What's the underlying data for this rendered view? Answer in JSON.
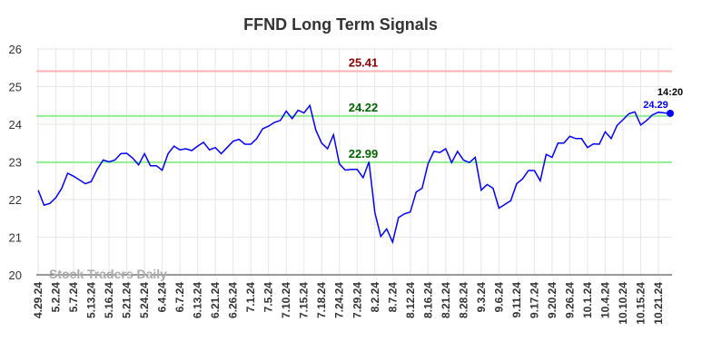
{
  "chart_data": {
    "type": "line",
    "title": "FFND Long Term Signals",
    "watermark": "Stock Traders Daily",
    "categories": [
      "4.29.24",
      null,
      null,
      "5.2.24",
      null,
      null,
      "5.7.24",
      null,
      null,
      "5.13.24",
      null,
      null,
      "5.16.24",
      null,
      null,
      "5.21.24",
      null,
      null,
      "5.24.24",
      null,
      null,
      "6.4.24",
      null,
      null,
      "6.7.24",
      null,
      null,
      "6.13.24",
      null,
      null,
      "6.21.24",
      null,
      null,
      "6.26.24",
      null,
      null,
      "7.1.24",
      null,
      null,
      "7.5.24",
      null,
      null,
      "7.10.24",
      null,
      null,
      "7.15.24",
      null,
      null,
      "7.18.24",
      null,
      null,
      "7.24.24",
      null,
      null,
      "7.29.24",
      null,
      null,
      "8.2.24",
      null,
      null,
      "8.7.24",
      null,
      null,
      "8.12.24",
      null,
      null,
      "8.16.24",
      null,
      null,
      "8.21.24",
      null,
      null,
      "8.28.24",
      null,
      null,
      "9.3.24",
      null,
      null,
      "9.6.24",
      null,
      null,
      "9.11.24",
      null,
      null,
      "9.17.24",
      null,
      null,
      "9.20.24",
      null,
      null,
      "9.26.24",
      null,
      null,
      "10.1.24",
      null,
      null,
      "10.4.24",
      null,
      null,
      "10.10.24",
      null,
      null,
      "10.15.24",
      null,
      null,
      "10.21.24",
      null,
      null
    ],
    "values": [
      22.25,
      21.85,
      21.9,
      22.05,
      22.3,
      22.7,
      22.62,
      22.52,
      22.42,
      22.48,
      22.8,
      23.05,
      23.0,
      23.05,
      23.22,
      23.23,
      23.1,
      22.92,
      23.22,
      22.9,
      22.9,
      22.78,
      23.22,
      23.42,
      23.32,
      23.35,
      23.3,
      23.42,
      23.52,
      23.32,
      23.38,
      23.22,
      23.38,
      23.55,
      23.6,
      23.47,
      23.47,
      23.62,
      23.88,
      23.95,
      24.05,
      24.1,
      24.35,
      24.15,
      24.37,
      24.3,
      24.5,
      23.85,
      23.5,
      23.35,
      23.72,
      22.95,
      22.78,
      22.8,
      22.8,
      22.58,
      23.0,
      21.65,
      21.02,
      21.22,
      20.87,
      21.52,
      21.62,
      21.67,
      22.2,
      22.3,
      22.95,
      23.28,
      23.25,
      23.35,
      22.98,
      23.28,
      23.05,
      22.98,
      23.12,
      22.25,
      22.4,
      22.3,
      21.77,
      21.87,
      21.97,
      22.42,
      22.55,
      22.77,
      22.77,
      22.5,
      23.2,
      23.12,
      23.5,
      23.5,
      23.68,
      23.62,
      23.62,
      23.38,
      23.48,
      23.47,
      23.8,
      23.62,
      23.97,
      24.12,
      24.28,
      24.33,
      23.98,
      24.1,
      24.25,
      24.32,
      24.3,
      24.29
    ],
    "color": "#0000ff",
    "last_time": "14:20",
    "hlines": [
      {
        "value": 25.41,
        "color": "#ffb3b3",
        "label_color": "#8b0000"
      },
      {
        "value": 24.22,
        "color": "#90ee90",
        "label_color": "#006400"
      },
      {
        "value": 22.99,
        "color": "#90ee90",
        "label_color": "#006400"
      }
    ],
    "ylim": [
      20,
      26
    ],
    "yticks": [
      20,
      21,
      22,
      23,
      24,
      25,
      26
    ],
    "grid": true
  }
}
